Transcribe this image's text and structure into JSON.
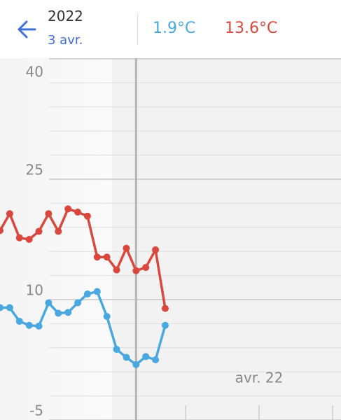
{
  "header": {
    "year": "2022",
    "date": "3 avr.",
    "low": "1.9°C",
    "high": "13.6°C"
  },
  "chart_data": {
    "type": "line",
    "categories": [
      null,
      null,
      null,
      null,
      null,
      null,
      null,
      null,
      null,
      null,
      null,
      null,
      null,
      null,
      null,
      null,
      null,
      null
    ],
    "series": [
      {
        "name": null,
        "color": "#d9473d",
        "values": [
          18.6,
          20.7,
          17.7,
          17.5,
          18.5,
          20.7,
          18.5,
          21.3,
          20.9,
          20.4,
          15.3,
          15.3,
          13.7,
          16.4,
          13.6,
          14.0,
          16.2,
          8.9
        ]
      },
      {
        "name": null,
        "color": "#4aa8e0",
        "values": [
          9.0,
          9.0,
          7.3,
          6.8,
          6.7,
          9.6,
          8.3,
          8.4,
          9.6,
          10.7,
          11.0,
          7.9,
          3.8,
          2.8,
          1.9,
          2.9,
          2.5,
          6.8
        ]
      }
    ],
    "ylim": [
      -5,
      40
    ],
    "yticks": [
      -5,
      10,
      25,
      40
    ],
    "grid": true,
    "x_label": "avr. 22",
    "cursor_index": 14
  }
}
